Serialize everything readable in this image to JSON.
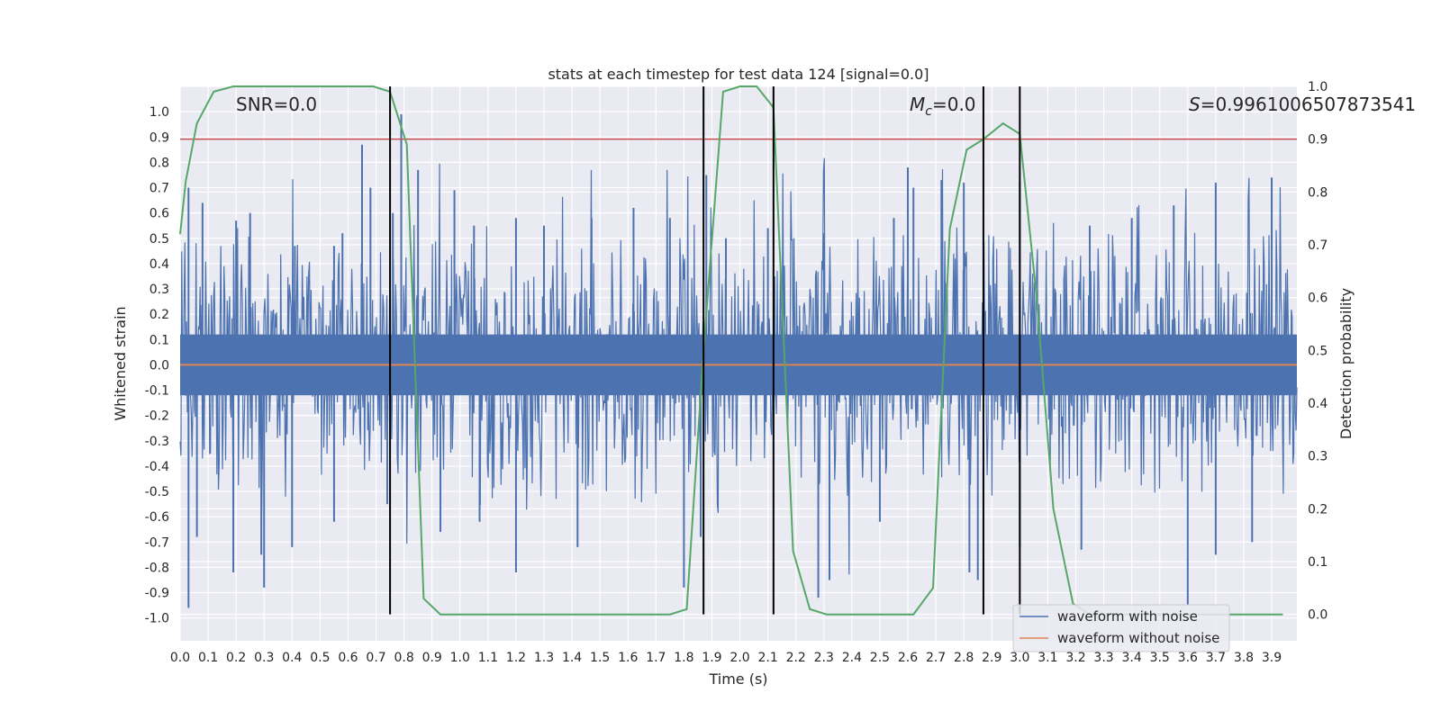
{
  "chart_data": {
    "type": "line",
    "title": "stats at each timestep for test data 124 [signal=0.0]",
    "xlabel": "Time (s)",
    "ylabel": "Whitened strain",
    "y2label": "Detection probability",
    "xlim": [
      0.0,
      3.99
    ],
    "ylim": [
      -1.09,
      1.1
    ],
    "y2lim": [
      -0.05,
      1.0
    ],
    "grid": true,
    "legend_position": "lower-right",
    "x_ticks": [
      "0.0",
      "0.1",
      "0.2",
      "0.3",
      "0.4",
      "0.5",
      "0.6",
      "0.7",
      "0.8",
      "0.9",
      "1.0",
      "1.1",
      "1.2",
      "1.3",
      "1.4",
      "1.5",
      "1.6",
      "1.7",
      "1.8",
      "1.9",
      "2.0",
      "2.1",
      "2.2",
      "2.3",
      "2.4",
      "2.5",
      "2.6",
      "2.7",
      "2.8",
      "2.9",
      "3.0",
      "3.1",
      "3.2",
      "3.3",
      "3.4",
      "3.5",
      "3.6",
      "3.7",
      "3.8",
      "3.9"
    ],
    "y_ticks": [
      "-1.0",
      "-0.9",
      "-0.8",
      "-0.7",
      "-0.6",
      "-0.5",
      "-0.4",
      "-0.3",
      "-0.2",
      "-0.1",
      "0.0",
      "0.1",
      "0.2",
      "0.3",
      "0.4",
      "0.5",
      "0.6",
      "0.7",
      "0.8",
      "0.9",
      "1.0"
    ],
    "y2_ticks": [
      "0.0",
      "0.1",
      "0.2",
      "0.3",
      "0.4",
      "0.5",
      "0.6",
      "0.7",
      "0.8",
      "0.9",
      "1.0"
    ],
    "annotations": {
      "snr": "SNR=0.0",
      "mc_symbol": "M",
      "mc_sub": "c",
      "mc_value": "=0.0",
      "s_symbol": "S",
      "s_value": "=0.9961006507873541"
    },
    "series": [
      {
        "name": "waveform with noise",
        "color": "#4c72b0",
        "axis": "left",
        "style": "dense noise, approx. +/-0.35 typical, peaks to +/-0.95",
        "peaks_up": [
          [
            0.03,
            0.7
          ],
          [
            0.08,
            0.64
          ],
          [
            0.2,
            0.57
          ],
          [
            0.25,
            0.6
          ],
          [
            0.41,
            0.47
          ],
          [
            0.55,
            0.47
          ],
          [
            0.58,
            0.52
          ],
          [
            0.65,
            0.87
          ],
          [
            0.68,
            0.7
          ],
          [
            0.76,
            0.6
          ],
          [
            0.79,
            0.99
          ],
          [
            0.85,
            0.77
          ],
          [
            0.98,
            0.69
          ],
          [
            1.05,
            0.55
          ],
          [
            1.2,
            0.58
          ],
          [
            1.3,
            0.55
          ],
          [
            1.47,
            0.58
          ],
          [
            1.62,
            0.62
          ],
          [
            1.75,
            0.58
          ],
          [
            1.88,
            0.75
          ],
          [
            1.95,
            0.5
          ],
          [
            2.1,
            0.54
          ],
          [
            2.3,
            0.52
          ],
          [
            2.55,
            0.58
          ],
          [
            2.6,
            0.78
          ],
          [
            2.62,
            0.7
          ],
          [
            2.72,
            0.73
          ],
          [
            2.8,
            0.72
          ],
          [
            3.0,
            0.72
          ],
          [
            3.25,
            0.55
          ],
          [
            3.4,
            0.58
          ],
          [
            3.55,
            0.63
          ],
          [
            3.7,
            0.72
          ],
          [
            3.9,
            0.74
          ]
        ],
        "peaks_down": [
          [
            0.03,
            -0.96
          ],
          [
            0.06,
            -0.68
          ],
          [
            0.19,
            -0.82
          ],
          [
            0.29,
            -0.75
          ],
          [
            0.3,
            -0.88
          ],
          [
            0.4,
            -0.72
          ],
          [
            0.55,
            -0.62
          ],
          [
            0.74,
            -0.55
          ],
          [
            0.93,
            -0.66
          ],
          [
            1.07,
            -0.62
          ],
          [
            1.2,
            -0.82
          ],
          [
            1.42,
            -0.72
          ],
          [
            1.8,
            -0.88
          ],
          [
            1.86,
            -0.68
          ],
          [
            2.28,
            -0.92
          ],
          [
            2.32,
            -0.85
          ],
          [
            2.5,
            -0.62
          ],
          [
            2.82,
            -0.82
          ],
          [
            2.85,
            -0.85
          ],
          [
            3.0,
            -0.72
          ],
          [
            3.22,
            -0.73
          ],
          [
            3.6,
            -0.95
          ],
          [
            3.7,
            -0.75
          ],
          [
            3.83,
            -0.7
          ]
        ]
      },
      {
        "name": "waveform without noise",
        "color": "#dd8452",
        "axis": "left",
        "x": [
          0.0,
          3.99
        ],
        "y": [
          0.0,
          0.0
        ]
      },
      {
        "name": "detection probability",
        "color": "#55a868",
        "axis": "right",
        "x": [
          0.0,
          0.02,
          0.06,
          0.12,
          0.19,
          0.25,
          0.31,
          0.37,
          0.44,
          0.5,
          0.56,
          0.62,
          0.69,
          0.75,
          0.81,
          0.87,
          0.93,
          1.0,
          1.06,
          1.12,
          1.19,
          1.25,
          1.31,
          1.37,
          1.44,
          1.5,
          1.56,
          1.62,
          1.69,
          1.75,
          1.81,
          1.87,
          1.94,
          2.0,
          2.06,
          2.12,
          2.19,
          2.25,
          2.31,
          2.37,
          2.44,
          2.5,
          2.56,
          2.62,
          2.69,
          2.75,
          2.81,
          2.87,
          2.94,
          3.0,
          3.06,
          3.12,
          3.19,
          3.25,
          3.31,
          3.37,
          3.44,
          3.5,
          3.56,
          3.62,
          3.69,
          3.75,
          3.81,
          3.87,
          3.94
        ],
        "y": [
          0.72,
          0.82,
          0.93,
          0.99,
          1.0,
          1.0,
          1.0,
          1.0,
          1.0,
          1.0,
          1.0,
          1.0,
          1.0,
          0.99,
          0.89,
          0.03,
          0.0,
          0.0,
          0.0,
          0.0,
          0.0,
          0.0,
          0.0,
          0.0,
          0.0,
          0.0,
          0.0,
          0.0,
          0.0,
          0.0,
          0.01,
          0.5,
          0.99,
          1.0,
          1.0,
          0.96,
          0.12,
          0.01,
          0.0,
          0.0,
          0.0,
          0.0,
          0.0,
          0.0,
          0.05,
          0.73,
          0.88,
          0.9,
          0.93,
          0.91,
          0.6,
          0.2,
          0.02,
          0.0,
          0.0,
          0.0,
          0.0,
          0.0,
          0.0,
          0.0,
          0.0,
          0.0,
          0.0,
          0.0,
          0.0
        ]
      }
    ],
    "threshold": {
      "axis": "right",
      "value": 0.9,
      "color": "#c44e52"
    },
    "vertical_lines": [
      0.75,
      1.87,
      2.12,
      2.87,
      3.0
    ]
  },
  "legend": {
    "entries": [
      {
        "label": "waveform with noise",
        "color": "#4c72b0"
      },
      {
        "label": "waveform without noise",
        "color": "#dd8452"
      }
    ]
  }
}
